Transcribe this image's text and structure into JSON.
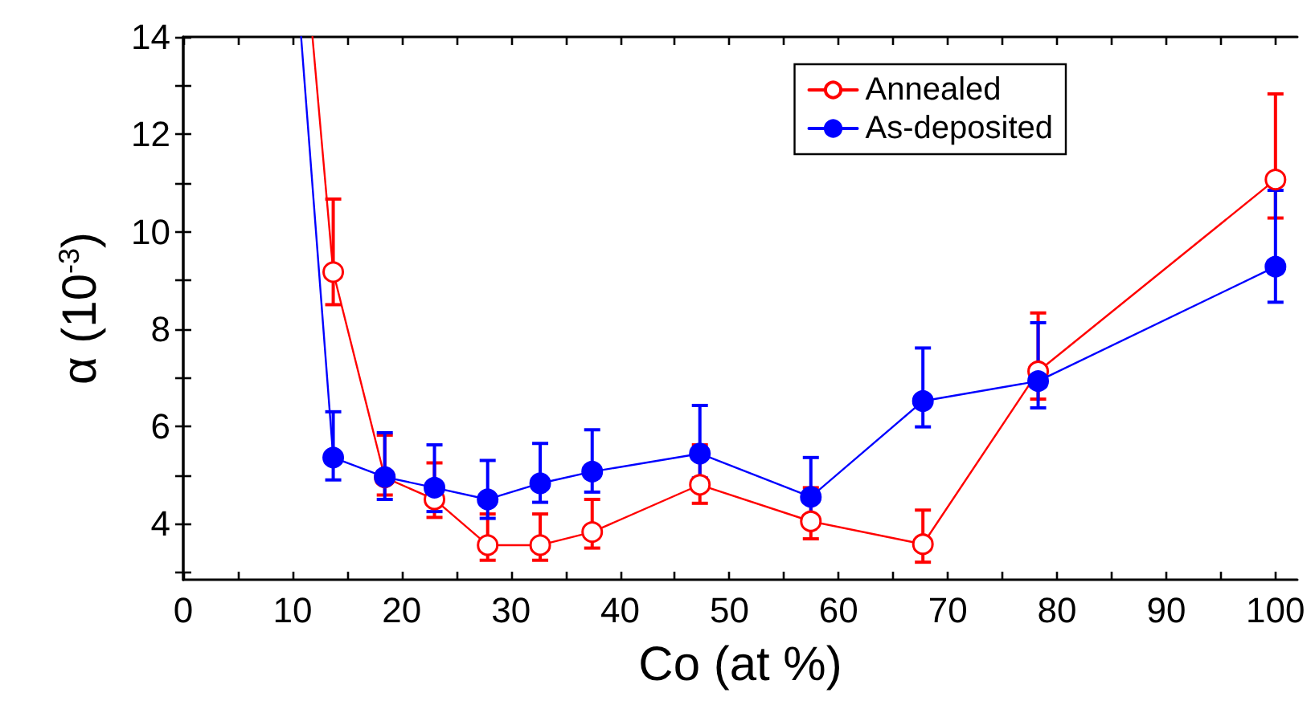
{
  "chart_data": {
    "type": "line",
    "xlabel": "Co (at %)",
    "ylabel": "α (10$^{-3}$)",
    "xlim": [
      0,
      102
    ],
    "xticks": [
      0,
      10,
      20,
      30,
      40,
      50,
      60,
      70,
      80,
      90,
      100
    ],
    "ylim": [
      2.85,
      14
    ],
    "yticks": [
      4,
      6,
      8,
      10,
      12,
      14
    ],
    "grid": false,
    "legend": "top right",
    "marker": "circle",
    "line_style": "solid",
    "series": [
      {
        "name": "Annealed",
        "color": "#ff0000",
        "x": [
          11.83,
          13.73,
          18.45,
          23.0,
          27.87,
          32.68,
          37.44,
          47.3,
          57.46,
          67.72,
          78.27,
          100
        ],
        "values": [
          14,
          9.17,
          4.95,
          4.5,
          3.56,
          3.56,
          3.83,
          4.8,
          4.05,
          3.58,
          7.13,
          11.07
        ],
        "errors": [
          null,
          [
            8.5,
            10.67
          ],
          [
            4.59,
            5.82
          ],
          [
            4.13,
            5.25
          ],
          [
            3.25,
            4.2
          ],
          [
            3.25,
            4.2
          ],
          [
            3.5,
            4.5
          ],
          [
            4.42,
            5.62
          ],
          [
            3.69,
            4.74
          ],
          [
            3.21,
            4.28
          ],
          [
            6.56,
            8.33
          ],
          [
            10.28,
            12.83
          ]
        ]
      },
      {
        "name": "As-deposited",
        "color": "#0000ff",
        "x": [
          10.79,
          13.73,
          18.45,
          23.0,
          27.87,
          32.68,
          37.44,
          47.3,
          57.46,
          67.72,
          78.27,
          100
        ],
        "values": [
          14,
          5.36,
          4.96,
          4.74,
          4.5,
          4.83,
          5.07,
          5.44,
          4.55,
          6.52,
          6.93,
          9.28
        ],
        "errors": [
          null,
          [
            4.9,
            6.3
          ],
          [
            4.5,
            5.87
          ],
          [
            4.25,
            5.62
          ],
          [
            4.11,
            5.3
          ],
          [
            4.44,
            5.65
          ],
          [
            4.65,
            5.93
          ],
          [
            4.94,
            6.43
          ],
          [
            4.17,
            5.36
          ],
          [
            5.99,
            7.61
          ],
          [
            6.38,
            8.13
          ],
          [
            8.55,
            10.85
          ]
        ]
      }
    ]
  }
}
